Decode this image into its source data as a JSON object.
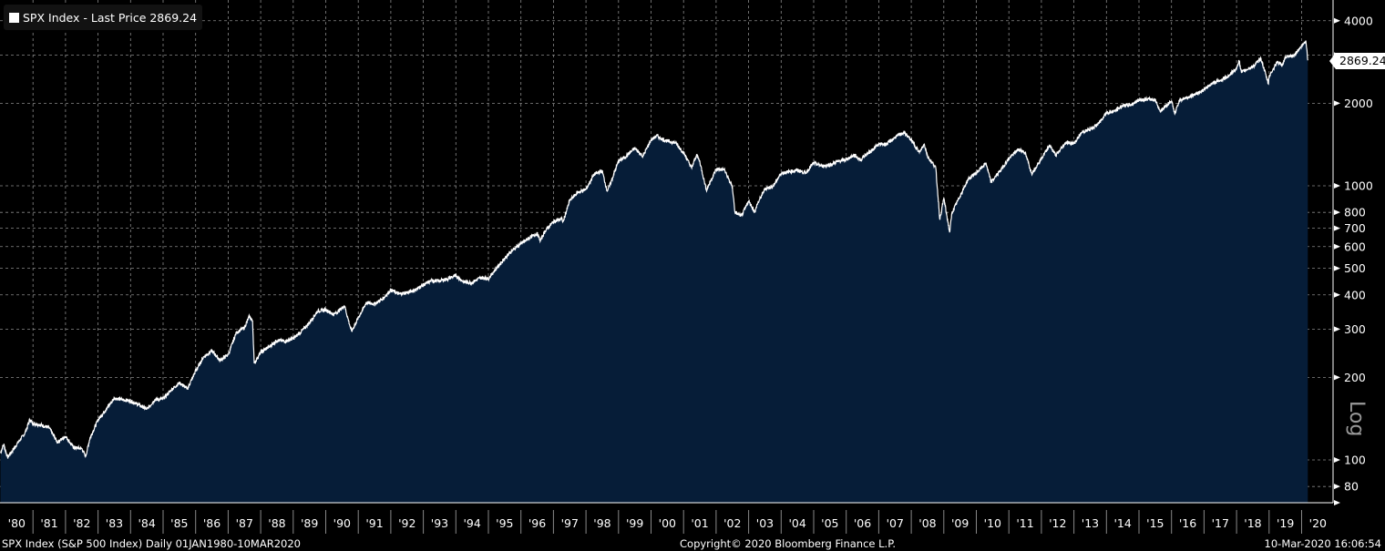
{
  "legend": {
    "label": "SPX Index - Last Price 2869.24",
    "swatch_color": "#ffffff"
  },
  "last_price_label": "2869.24",
  "scale_label": "Log",
  "footer": {
    "left": "SPX Index (S&P 500 Index)  Daily 01JAN1980-10MAR2020",
    "center": "Copyright© 2020 Bloomberg Finance L.P.",
    "right": "10-Mar-2020 16:06:54"
  },
  "colors": {
    "background": "#000000",
    "fill": "#061d38",
    "line": "#ffffff",
    "grid": "#8a8a8a",
    "tick_text": "#ffffff"
  },
  "chart_data": {
    "type": "area",
    "title": "SPX Index - Last Price",
    "yscale": "log",
    "ylim": [
      70,
      4600
    ],
    "xlim": [
      1980.0,
      2021.0
    ],
    "yticks": [
      80,
      100,
      200,
      300,
      400,
      500,
      600,
      700,
      800,
      1000,
      2000,
      3000,
      4000
    ],
    "ytick_labels": [
      "80",
      "100",
      "200",
      "300",
      "400",
      "500",
      "600",
      "700",
      "800",
      "1000",
      "2000",
      "",
      "4000"
    ],
    "xtick_labels": [
      "'80",
      "'81",
      "'82",
      "'83",
      "'84",
      "'85",
      "'86",
      "'87",
      "'88",
      "'89",
      "'90",
      "'91",
      "'92",
      "'93",
      "'94",
      "'95",
      "'96",
      "'97",
      "'98",
      "'99",
      "'00",
      "'01",
      "'02",
      "'03",
      "'04",
      "'05",
      "'06",
      "'07",
      "'08",
      "'09",
      "'10",
      "'11",
      "'12",
      "'13",
      "'14",
      "'15",
      "'16",
      "'17",
      "'18",
      "'19",
      "'20"
    ],
    "grid": true,
    "legend_position": "top-left",
    "series": [
      {
        "name": "SPX Index - Last Price",
        "points": [
          [
            1980.0,
            106
          ],
          [
            1980.1,
            114
          ],
          [
            1980.22,
            102
          ],
          [
            1980.5,
            114
          ],
          [
            1980.75,
            125
          ],
          [
            1980.9,
            140
          ],
          [
            1981.0,
            136
          ],
          [
            1981.25,
            134
          ],
          [
            1981.5,
            131
          ],
          [
            1981.75,
            116
          ],
          [
            1982.0,
            122
          ],
          [
            1982.25,
            111
          ],
          [
            1982.5,
            110
          ],
          [
            1982.62,
            103
          ],
          [
            1982.75,
            120
          ],
          [
            1983.0,
            140
          ],
          [
            1983.25,
            153
          ],
          [
            1983.5,
            168
          ],
          [
            1983.75,
            166
          ],
          [
            1984.0,
            164
          ],
          [
            1984.25,
            159
          ],
          [
            1984.5,
            153
          ],
          [
            1984.75,
            166
          ],
          [
            1985.0,
            167
          ],
          [
            1985.25,
            180
          ],
          [
            1985.5,
            191
          ],
          [
            1985.75,
            182
          ],
          [
            1986.0,
            211
          ],
          [
            1986.25,
            238
          ],
          [
            1986.5,
            250
          ],
          [
            1986.75,
            231
          ],
          [
            1987.0,
            242
          ],
          [
            1987.25,
            291
          ],
          [
            1987.5,
            304
          ],
          [
            1987.65,
            334
          ],
          [
            1987.75,
            321
          ],
          [
            1987.8,
            225
          ],
          [
            1988.0,
            247
          ],
          [
            1988.25,
            258
          ],
          [
            1988.5,
            273
          ],
          [
            1988.75,
            271
          ],
          [
            1989.0,
            277
          ],
          [
            1989.25,
            294
          ],
          [
            1989.5,
            317
          ],
          [
            1989.75,
            349
          ],
          [
            1990.0,
            353
          ],
          [
            1990.25,
            339
          ],
          [
            1990.5,
            358
          ],
          [
            1990.58,
            365
          ],
          [
            1990.75,
            306
          ],
          [
            1990.8,
            295
          ],
          [
            1991.0,
            330
          ],
          [
            1991.25,
            375
          ],
          [
            1991.5,
            371
          ],
          [
            1991.75,
            387
          ],
          [
            1992.0,
            417
          ],
          [
            1992.25,
            403
          ],
          [
            1992.5,
            408
          ],
          [
            1992.75,
            417
          ],
          [
            1993.0,
            435
          ],
          [
            1993.25,
            451
          ],
          [
            1993.5,
            450
          ],
          [
            1993.75,
            458
          ],
          [
            1994.0,
            470
          ],
          [
            1994.25,
            445
          ],
          [
            1994.5,
            444
          ],
          [
            1994.75,
            462
          ],
          [
            1995.0,
            459
          ],
          [
            1995.25,
            500
          ],
          [
            1995.5,
            544
          ],
          [
            1995.75,
            584
          ],
          [
            1996.0,
            615
          ],
          [
            1996.25,
            645
          ],
          [
            1996.5,
            670
          ],
          [
            1996.6,
            630
          ],
          [
            1996.75,
            687
          ],
          [
            1997.0,
            740
          ],
          [
            1997.25,
            757
          ],
          [
            1997.3,
            740
          ],
          [
            1997.5,
            885
          ],
          [
            1997.75,
            947
          ],
          [
            1998.0,
            970
          ],
          [
            1998.25,
            1101
          ],
          [
            1998.5,
            1133
          ],
          [
            1998.65,
            957
          ],
          [
            1998.75,
            1017
          ],
          [
            1999.0,
            1229
          ],
          [
            1999.25,
            1286
          ],
          [
            1999.5,
            1372
          ],
          [
            1999.75,
            1282
          ],
          [
            2000.0,
            1469
          ],
          [
            2000.2,
            1527
          ],
          [
            2000.25,
            1498
          ],
          [
            2000.5,
            1454
          ],
          [
            2000.75,
            1436
          ],
          [
            2001.0,
            1320
          ],
          [
            2001.25,
            1160
          ],
          [
            2001.4,
            1300
          ],
          [
            2001.5,
            1224
          ],
          [
            2001.7,
            965
          ],
          [
            2002.0,
            1148
          ],
          [
            2002.25,
            1147
          ],
          [
            2002.5,
            989
          ],
          [
            2002.58,
            800
          ],
          [
            2002.78,
            776
          ],
          [
            2003.0,
            879
          ],
          [
            2003.2,
            800
          ],
          [
            2003.25,
            848
          ],
          [
            2003.5,
            975
          ],
          [
            2003.75,
            995
          ],
          [
            2004.0,
            1111
          ],
          [
            2004.25,
            1126
          ],
          [
            2004.5,
            1140
          ],
          [
            2004.75,
            1114
          ],
          [
            2005.0,
            1211
          ],
          [
            2005.25,
            1180
          ],
          [
            2005.5,
            1191
          ],
          [
            2005.75,
            1228
          ],
          [
            2006.0,
            1248
          ],
          [
            2006.25,
            1294
          ],
          [
            2006.45,
            1240
          ],
          [
            2006.5,
            1270
          ],
          [
            2006.75,
            1335
          ],
          [
            2007.0,
            1418
          ],
          [
            2007.25,
            1420
          ],
          [
            2007.5,
            1503
          ],
          [
            2007.78,
            1565
          ],
          [
            2008.0,
            1468
          ],
          [
            2008.25,
            1322
          ],
          [
            2008.4,
            1420
          ],
          [
            2008.5,
            1280
          ],
          [
            2008.75,
            1166
          ],
          [
            2008.88,
            752
          ],
          [
            2009.0,
            903
          ],
          [
            2009.18,
            676
          ],
          [
            2009.25,
            797
          ],
          [
            2009.5,
            919
          ],
          [
            2009.75,
            1057
          ],
          [
            2010.0,
            1115
          ],
          [
            2010.3,
            1210
          ],
          [
            2010.45,
            1030
          ],
          [
            2010.75,
            1141
          ],
          [
            2011.0,
            1257
          ],
          [
            2011.3,
            1360
          ],
          [
            2011.5,
            1320
          ],
          [
            2011.7,
            1110
          ],
          [
            2011.75,
            1131
          ],
          [
            2012.0,
            1257
          ],
          [
            2012.25,
            1408
          ],
          [
            2012.45,
            1290
          ],
          [
            2012.75,
            1440
          ],
          [
            2013.0,
            1426
          ],
          [
            2013.25,
            1569
          ],
          [
            2013.5,
            1606
          ],
          [
            2013.75,
            1681
          ],
          [
            2014.0,
            1848
          ],
          [
            2014.25,
            1872
          ],
          [
            2014.5,
            1960
          ],
          [
            2014.75,
            1972
          ],
          [
            2015.0,
            2058
          ],
          [
            2015.25,
            2067
          ],
          [
            2015.5,
            2063
          ],
          [
            2015.65,
            1870
          ],
          [
            2015.75,
            1920
          ],
          [
            2016.0,
            2044
          ],
          [
            2016.1,
            1829
          ],
          [
            2016.25,
            2060
          ],
          [
            2016.5,
            2099
          ],
          [
            2016.75,
            2168
          ],
          [
            2017.0,
            2239
          ],
          [
            2017.25,
            2363
          ],
          [
            2017.5,
            2423
          ],
          [
            2017.75,
            2519
          ],
          [
            2018.0,
            2674
          ],
          [
            2018.07,
            2873
          ],
          [
            2018.15,
            2580
          ],
          [
            2018.25,
            2640
          ],
          [
            2018.5,
            2718
          ],
          [
            2018.75,
            2914
          ],
          [
            2018.98,
            2351
          ],
          [
            2019.0,
            2507
          ],
          [
            2019.25,
            2834
          ],
          [
            2019.4,
            2750
          ],
          [
            2019.5,
            2942
          ],
          [
            2019.75,
            2977
          ],
          [
            2020.0,
            3231
          ],
          [
            2020.13,
            3386
          ],
          [
            2020.19,
            2869.24
          ]
        ]
      }
    ]
  }
}
